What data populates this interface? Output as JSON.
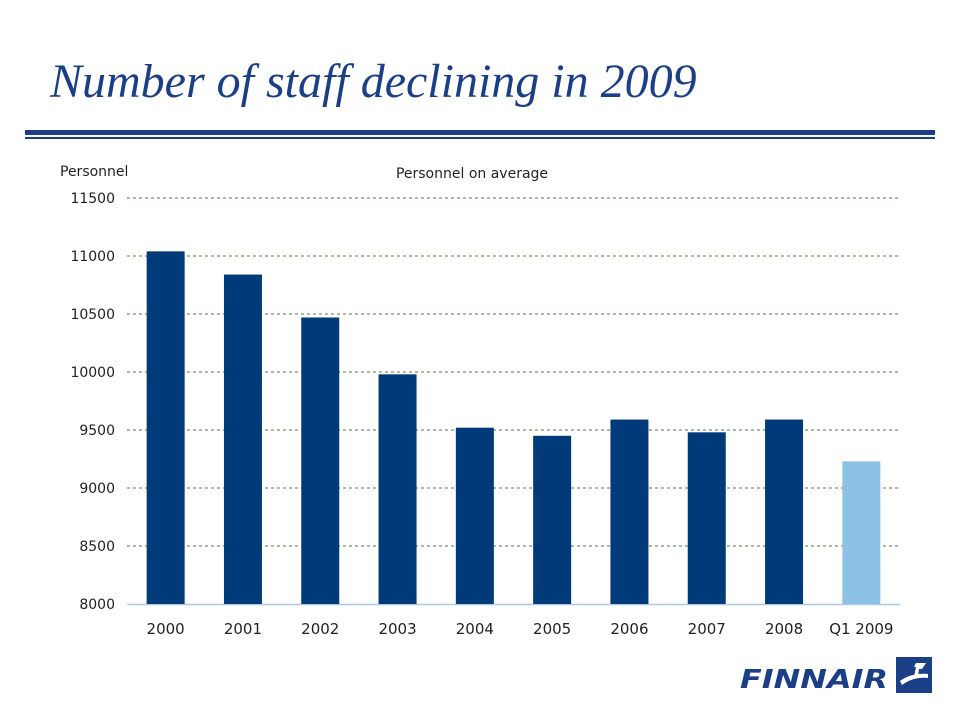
{
  "slide": {
    "title": "Number of staff declining in 2009"
  },
  "chart_data": {
    "type": "bar",
    "title": "Personnel on average",
    "ylabel": "Personnel",
    "xlabel": "",
    "categories": [
      "2000",
      "2001",
      "2002",
      "2003",
      "2004",
      "2005",
      "2006",
      "2007",
      "2008",
      "Q1 2009"
    ],
    "values": [
      11040,
      10840,
      10470,
      9980,
      9520,
      9450,
      9590,
      9480,
      9590,
      9230
    ],
    "ylim": [
      8000,
      11500
    ],
    "yticks": [
      8000,
      8500,
      9000,
      9500,
      10000,
      10500,
      11000,
      11500
    ],
    "grid": true,
    "bar_colors": [
      "#003a78",
      "#003a78",
      "#003a78",
      "#003a78",
      "#003a78",
      "#003a78",
      "#003a78",
      "#003a78",
      "#003a78",
      "#8ec1e6"
    ],
    "grid_color": "#4f7f3c",
    "axis_color": "#a9c9e4"
  },
  "footer": {
    "logo_text": "FINNAIR",
    "logo_color": "#1b3f87"
  }
}
